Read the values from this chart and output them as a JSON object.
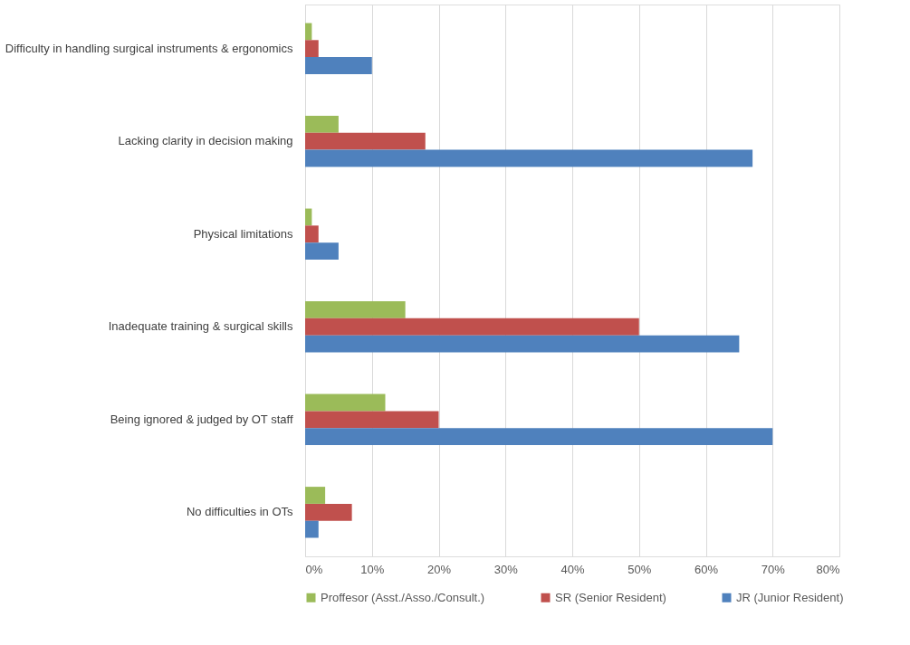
{
  "chart_data": {
    "type": "bar",
    "orientation": "horizontal",
    "categories": [
      "Difficulty in handling surgical instruments & ergonomics",
      "Lacking clarity in decision making",
      "Physical limitations",
      "Inadequate training & surgical skills",
      "Being ignored & judged by OT staff",
      "No difficulties in OTs"
    ],
    "series": [
      {
        "name": "Proffesor (Asst./Asso./Consult.)",
        "color": "#9bbb59",
        "values": [
          1,
          5,
          1,
          15,
          12,
          3
        ]
      },
      {
        "name": "SR (Senior Resident)",
        "color": "#c0504d",
        "values": [
          2,
          18,
          2,
          50,
          20,
          7
        ]
      },
      {
        "name": "JR (Junior Resident)",
        "color": "#4f81bd",
        "values": [
          10,
          67,
          5,
          65,
          70,
          2
        ]
      }
    ],
    "xlim": [
      0,
      80
    ],
    "xticks": [
      {
        "value": 0,
        "label": "0%"
      },
      {
        "value": 10,
        "label": "10%"
      },
      {
        "value": 20,
        "label": "20%"
      },
      {
        "value": 30,
        "label": "30%"
      },
      {
        "value": 40,
        "label": "40%"
      },
      {
        "value": 50,
        "label": "50%"
      },
      {
        "value": 60,
        "label": "60%"
      },
      {
        "value": 70,
        "label": "70%"
      },
      {
        "value": 80,
        "label": "80%"
      }
    ],
    "grid": "x",
    "legend": "bottom"
  }
}
